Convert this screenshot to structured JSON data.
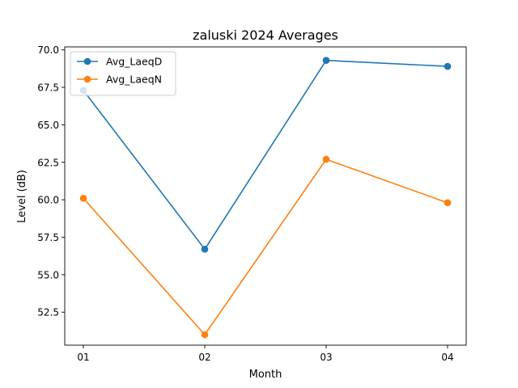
{
  "chart_data": {
    "type": "line",
    "title": "zaluski 2024 Averages",
    "xlabel": "Month",
    "ylabel": "Level (dB)",
    "categories": [
      "01",
      "02",
      "03",
      "04"
    ],
    "ylim": [
      50.3,
      70.2
    ],
    "yticks": [
      52.5,
      55.0,
      57.5,
      60.0,
      62.5,
      65.0,
      67.5,
      70.0
    ],
    "ytick_labels": [
      "52.5",
      "55.0",
      "57.5",
      "60.0",
      "62.5",
      "65.0",
      "67.5",
      "70.0"
    ],
    "grid": false,
    "legend_position": "upper-left",
    "series": [
      {
        "name": "Avg_LaeqD",
        "color": "#1f77b4",
        "values": [
          67.3,
          56.7,
          69.3,
          68.9
        ]
      },
      {
        "name": "Avg_LaeqN",
        "color": "#ff7f0e",
        "values": [
          60.1,
          51.0,
          62.7,
          59.8
        ]
      }
    ]
  }
}
